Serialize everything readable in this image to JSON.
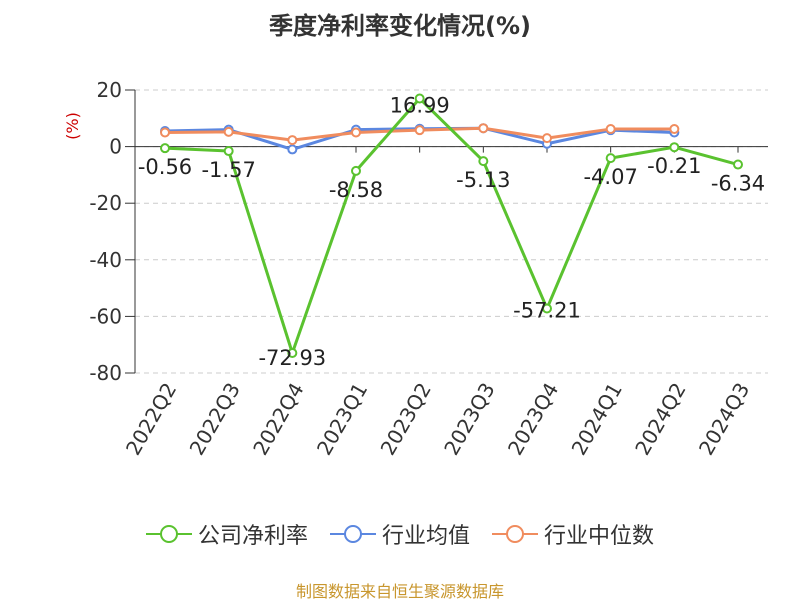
{
  "title": "季度净利率变化情况(%)",
  "source": "制图数据来自恒生聚源数据库",
  "colors": {
    "company": "#5ac22f",
    "industry_avg": "#5b87e0",
    "industry_median": "#f08c5e",
    "grid": "#cccccc",
    "ylabel": "#cc0000"
  },
  "chart_data": {
    "type": "line",
    "title": "季度净利率变化情况(%)",
    "xlabel": "",
    "ylabel": "(%)",
    "categories": [
      "2022Q2",
      "2022Q3",
      "2022Q4",
      "2023Q1",
      "2023Q2",
      "2023Q3",
      "2023Q4",
      "2024Q1",
      "2024Q2",
      "2024Q3"
    ],
    "ylim": [
      -80,
      20
    ],
    "yticks": [
      20,
      0,
      -20,
      -40,
      -60,
      -80
    ],
    "grid": "horizontal-dashed",
    "legend_position": "bottom",
    "series": [
      {
        "name": "公司净利率",
        "values": [
          -0.56,
          -1.57,
          -72.93,
          -8.58,
          16.99,
          -5.13,
          -57.21,
          -4.07,
          -0.21,
          -6.34
        ],
        "labels": [
          "-0.56",
          "-1.57",
          "-72.93",
          "-8.58",
          "16.99",
          "-5.13",
          "-57.21",
          "-4.07",
          "-0.21",
          "-6.34"
        ]
      },
      {
        "name": "行业均值",
        "values": [
          5.5,
          6.0,
          -1.0,
          6.0,
          6.3,
          6.5,
          1.0,
          5.8,
          5.0,
          null
        ]
      },
      {
        "name": "行业中位数",
        "values": [
          5.0,
          5.2,
          2.3,
          5.0,
          5.8,
          6.5,
          3.0,
          6.2,
          6.2,
          null
        ]
      }
    ]
  }
}
